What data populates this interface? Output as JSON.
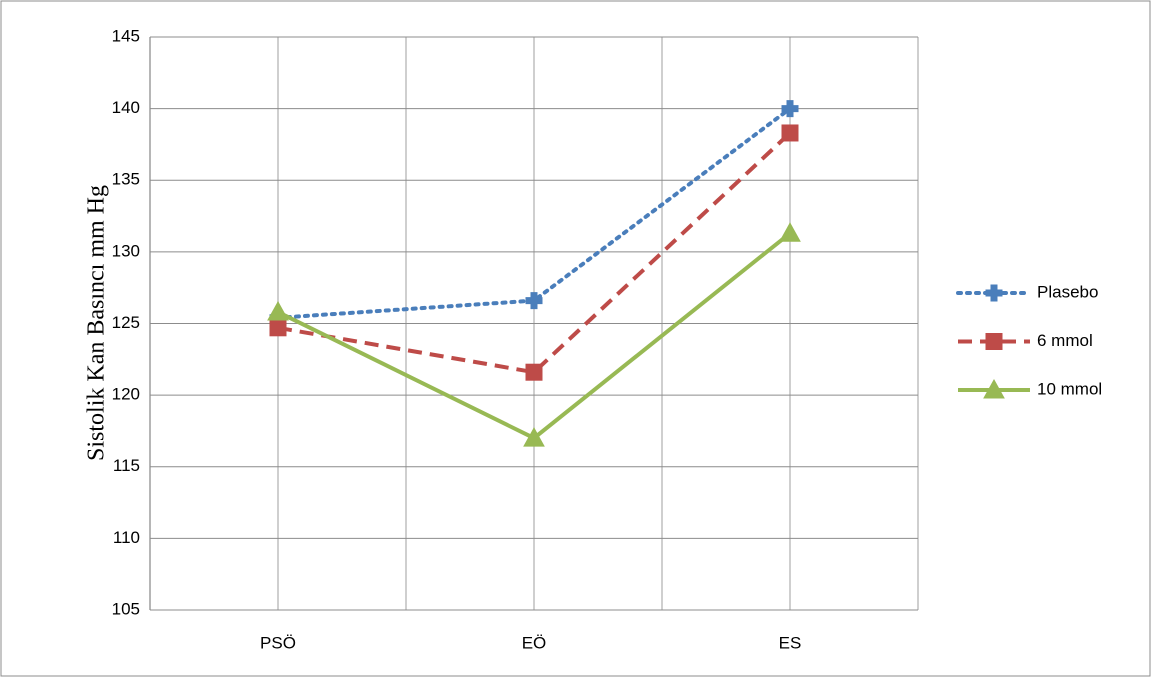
{
  "chart_data": {
    "type": "line",
    "y_label": "Sistolik Kan Basıncı mm Hg",
    "categories": [
      "PSÖ",
      "EÖ",
      "ES"
    ],
    "series": [
      {
        "name": "Plasebo",
        "color": "#4a7ebb",
        "line_style": "dotted",
        "marker": "plus",
        "values": [
          125.4,
          126.6,
          140.0
        ]
      },
      {
        "name": "6 mmol",
        "color": "#be4b48",
        "line_style": "dashed",
        "marker": "square",
        "values": [
          124.7,
          121.6,
          138.3
        ]
      },
      {
        "name": "10 mmol",
        "color": "#98b954",
        "line_style": "solid",
        "marker": "triangle",
        "values": [
          125.8,
          117.0,
          131.3
        ]
      }
    ],
    "ylim": [
      105,
      145
    ],
    "yticks": [
      105,
      110,
      115,
      120,
      125,
      130,
      135,
      140,
      145
    ],
    "grid": true,
    "legend": "right"
  }
}
